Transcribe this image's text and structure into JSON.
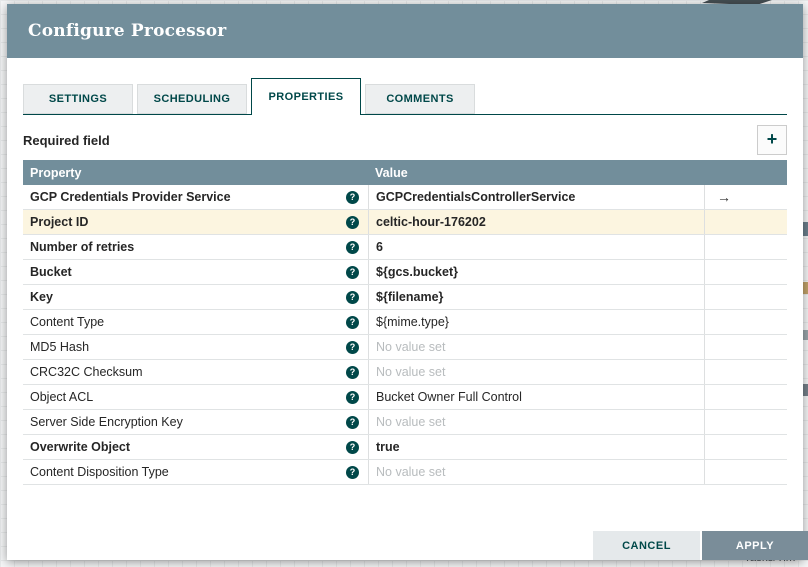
{
  "window": {
    "title": "Configure Processor"
  },
  "tabs": [
    {
      "label": "SETTINGS",
      "active": false
    },
    {
      "label": "SCHEDULING",
      "active": false
    },
    {
      "label": "PROPERTIES",
      "active": true
    },
    {
      "label": "COMMENTS",
      "active": false
    }
  ],
  "required_field_label": "Required field",
  "add_button_icon": "+",
  "table": {
    "columns": [
      "Property",
      "Value"
    ],
    "help_icon_glyph": "?",
    "goto_icon_glyph": "→",
    "rows": [
      {
        "property": "GCP Credentials Provider Service",
        "required": true,
        "value": "GCPCredentialsControllerService",
        "no_value": false,
        "selected": false,
        "goto": true
      },
      {
        "property": "Project ID",
        "required": true,
        "value": "celtic-hour-176202",
        "no_value": false,
        "selected": true,
        "goto": false
      },
      {
        "property": "Number of retries",
        "required": true,
        "value": "6",
        "no_value": false,
        "selected": false,
        "goto": false
      },
      {
        "property": "Bucket",
        "required": true,
        "value": "${gcs.bucket}",
        "no_value": false,
        "selected": false,
        "goto": false
      },
      {
        "property": "Key",
        "required": true,
        "value": "${filename}",
        "no_value": false,
        "selected": false,
        "goto": false
      },
      {
        "property": "Content Type",
        "required": false,
        "value": "${mime.type}",
        "no_value": false,
        "selected": false,
        "goto": false
      },
      {
        "property": "MD5 Hash",
        "required": false,
        "value": "No value set",
        "no_value": true,
        "selected": false,
        "goto": false
      },
      {
        "property": "CRC32C Checksum",
        "required": false,
        "value": "No value set",
        "no_value": true,
        "selected": false,
        "goto": false
      },
      {
        "property": "Object ACL",
        "required": false,
        "value": "Bucket Owner Full Control",
        "no_value": false,
        "selected": false,
        "goto": false
      },
      {
        "property": "Server Side Encryption Key",
        "required": false,
        "value": "No value set",
        "no_value": true,
        "selected": false,
        "goto": false
      },
      {
        "property": "Overwrite Object",
        "required": true,
        "value": "true",
        "no_value": false,
        "selected": false,
        "goto": false
      },
      {
        "property": "Content Disposition Type",
        "required": false,
        "value": "No value set",
        "no_value": true,
        "selected": false,
        "goto": false
      }
    ]
  },
  "buttons": {
    "cancel": "CANCEL",
    "apply": "APPLY"
  },
  "canvas": {
    "partial_text": "Tasks/Tim"
  },
  "colors": {
    "accent_teal": "#004849",
    "header_slate": "#728E9B",
    "selected_row": "#FCF5E0",
    "apply_button": "#7A8D99",
    "no_value_text": "#b8bcbe"
  }
}
